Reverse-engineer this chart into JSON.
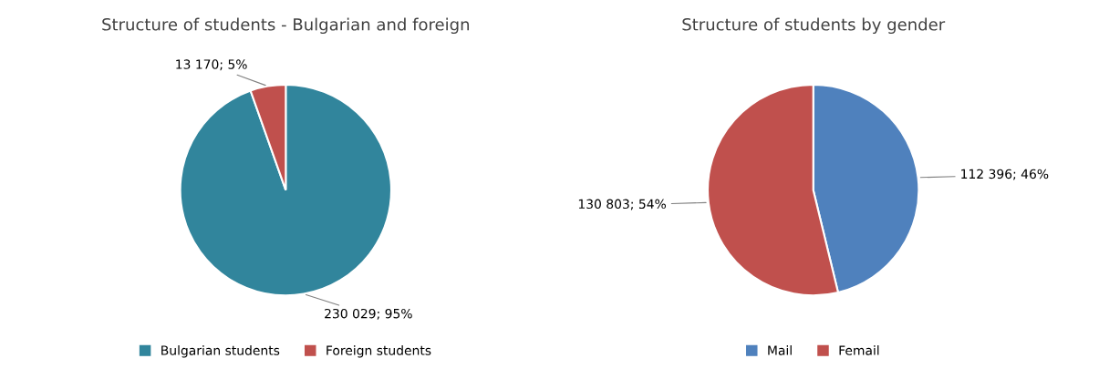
{
  "chart_data": [
    {
      "type": "pie",
      "title": "Structure of students - Bulgarian and foreign",
      "categories": [
        "Bulgarian students",
        "Foreign students"
      ],
      "values": [
        230029,
        13170
      ],
      "colors": [
        "#31859c",
        "#c0504d"
      ],
      "value_labels": [
        "230 029; 95%",
        "13 170; 5%"
      ],
      "legend": "bottom"
    },
    {
      "type": "pie",
      "title": "Structure of students by gender",
      "categories": [
        "Mail",
        "Femail"
      ],
      "values": [
        112396,
        130803
      ],
      "colors": [
        "#4f81bd",
        "#c0504d"
      ],
      "value_labels": [
        "112 396; 46%",
        "130 803; 54%"
      ],
      "legend": "bottom"
    }
  ]
}
